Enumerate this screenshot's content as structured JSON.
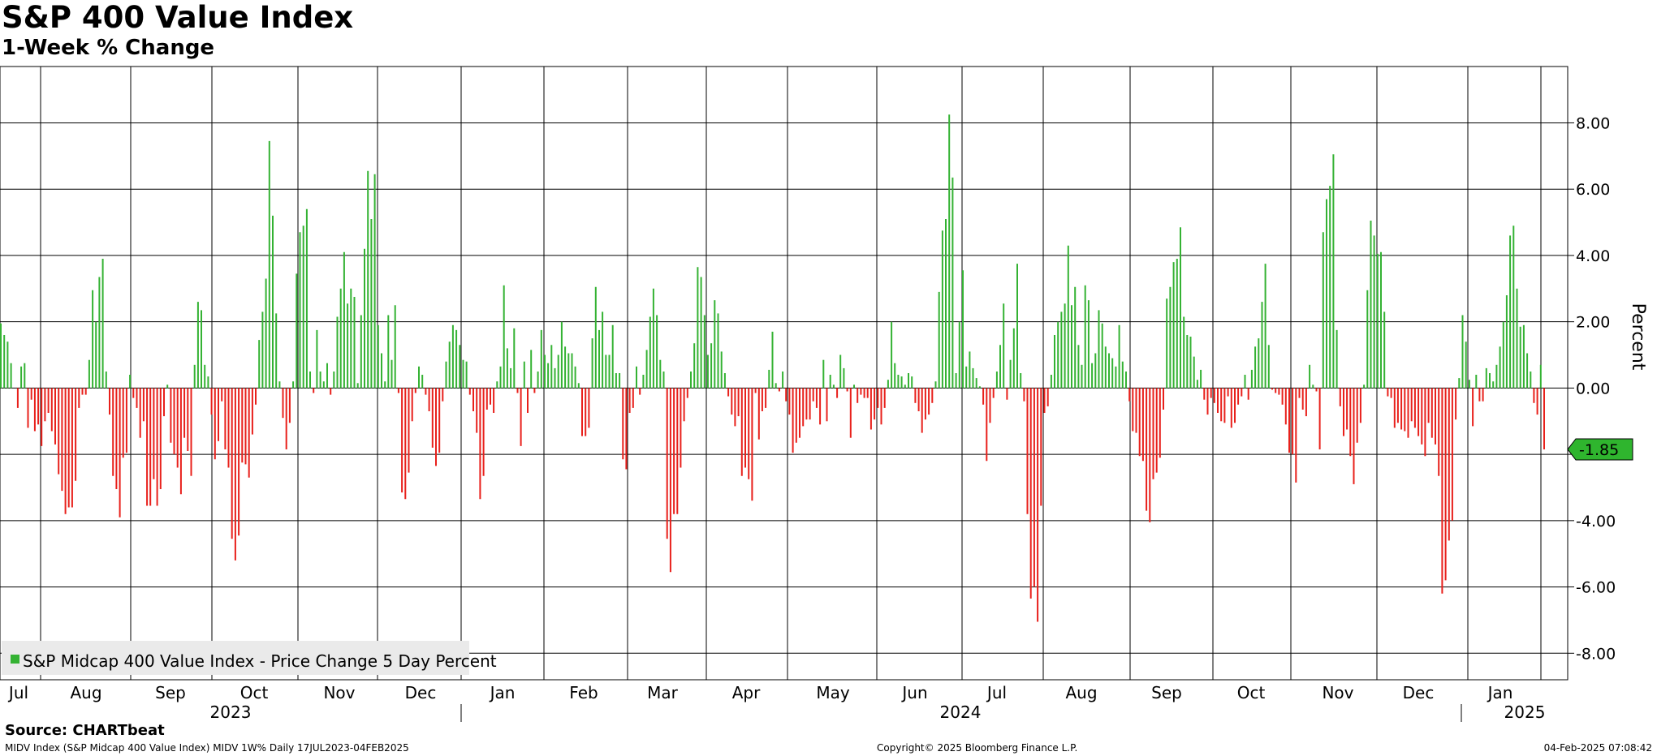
{
  "header": {
    "title": "S&P 400 Value Index",
    "subtitle": "1-Week % Change"
  },
  "footer": {
    "source": "Source: CHARTbeat",
    "left": "MIDV Index (S&P Midcap 400 Value Index) MIDV 1W%  Daily 17JUL2023-04FEB2025",
    "middle": "Copyright© 2025 Bloomberg Finance L.P.",
    "right": "04-Feb-2025 07:08:42"
  },
  "colors": {
    "positive": "#34b233",
    "negative": "#e8201b",
    "last_value_bg": "#2fb52e"
  },
  "chart_data": {
    "type": "bar",
    "ylabel": "Percent",
    "ylim": [
      -8.8,
      9.7
    ],
    "y_ticks": [
      8,
      6,
      4,
      2,
      0,
      -2,
      -4,
      -6,
      -8
    ],
    "y_tick_labels": [
      "8.00",
      "6.00",
      "4.00",
      "2.00",
      "0.00",
      "",
      "-4.00",
      "-6.00",
      "-8.00"
    ],
    "last_value_label": "-1.85",
    "last_value": -1.85,
    "legend": {
      "label": "S&P Midcap 400 Value Index - Price Change 5 Day Percent",
      "position": "bottom-left"
    },
    "months": [
      "Jul",
      "Aug",
      "Sep",
      "Oct",
      "Nov",
      "Dec",
      "Jan",
      "Feb",
      "Mar",
      "Apr",
      "May",
      "Jun",
      "Jul",
      "Aug",
      "Sep",
      "Oct",
      "Nov",
      "Dec",
      "Jan"
    ],
    "years": [
      "2023",
      "2024",
      "2025"
    ],
    "grid": true,
    "values": [
      1.95,
      1.6,
      1.4,
      0.75,
      0,
      -0.6,
      0.65,
      0.75,
      -1.2,
      -0.35,
      -1.3,
      -1.1,
      -1.75,
      -1.0,
      -0.75,
      -1.3,
      -1.7,
      -2.6,
      -3.1,
      -3.8,
      -3.6,
      -3.6,
      -2.8,
      -0.6,
      -0.2,
      -0.2,
      0.85,
      2.95,
      2.0,
      3.35,
      3.9,
      0.5,
      -0.8,
      -2.65,
      -3.05,
      -3.9,
      -2.1,
      -1.95,
      0.4,
      -0.3,
      -0.6,
      -1.5,
      -1.0,
      -3.55,
      -3.55,
      -2.75,
      -3.55,
      -3.05,
      -0.85,
      0.1,
      -1.65,
      -2.0,
      -2.4,
      -3.2,
      -1.5,
      -1.9,
      -2.65,
      0.7,
      2.6,
      2.35,
      0.7,
      0.35,
      -0.8,
      -2.15,
      -1.6,
      -0.4,
      -1.85,
      -2.4,
      -4.55,
      -5.2,
      -4.45,
      -2.25,
      -2.3,
      -2.7,
      -1.4,
      -0.5,
      1.45,
      2.3,
      3.3,
      7.45,
      5.2,
      2.25,
      0.2,
      -0.9,
      -1.85,
      -1.05,
      0.2,
      3.45,
      4.7,
      4.9,
      5.4,
      0.5,
      -0.15,
      1.75,
      0.5,
      0.2,
      0.75,
      -0.2,
      0.5,
      2.15,
      3.0,
      4.1,
      2.55,
      3.0,
      2.75,
      0.15,
      2.2,
      4.2,
      6.55,
      5.1,
      6.45,
      1.9,
      1.05,
      0.2,
      2.2,
      0.85,
      2.5
    ],
    "values_2": [
      -0.15,
      -3.15,
      -3.35,
      -2.55,
      -1.0,
      -0.15,
      0.65,
      0.4,
      -0.2,
      -0.7,
      -1.8,
      -2.35,
      -1.95,
      -0.4,
      0.8,
      1.4,
      1.9,
      1.75,
      1.3,
      0.85,
      0.8,
      -0.2,
      -0.7,
      -1.35,
      -3.35,
      -2.65,
      -0.65,
      -0.5,
      -0.75,
      0.2,
      0.65,
      3.1,
      1.2,
      0.6,
      1.8,
      -0.15,
      -1.75,
      0.8,
      -0.75,
      1.15,
      -0.15,
      0.5,
      1.75,
      1.0,
      0.75,
      1.3,
      0.6,
      1.0,
      2.0,
      1.25,
      1.05,
      1.05,
      0.65,
      0.15,
      -1.45,
      -1.45,
      -1.2,
      1.5,
      3.05,
      1.75,
      2.3,
      1.0,
      1.0,
      1.9,
      0.45,
      0.45,
      -2.15,
      -2.45,
      -0.75,
      -0.6,
      0.65,
      -0.2,
      0.4,
      1.15,
      2.15,
      3.0,
      2.2,
      0.85,
      0.5,
      -4.55,
      -5.55,
      -3.8,
      -3.8,
      -2.4,
      -1.0,
      -0.3,
      0.5,
      1.35,
      3.65,
      3.35,
      2.2,
      1.0,
      1.35,
      2.65,
      2.25,
      1.1,
      0.45,
      -0.25,
      -0.8,
      -1.15,
      -0.85,
      -2.65,
      -2.4,
      -2.75,
      -3.4,
      -0.15,
      -1.55,
      -0.7,
      -0.6,
      0.55,
      1.7,
      0.15,
      -0.1,
      0.5,
      -0.4,
      -0.8,
      -1.95
    ],
    "values_3": [
      -1.65,
      -1.5,
      -1.15,
      -0.95,
      -0.95,
      -0.4,
      -0.6,
      -1.1,
      0.85,
      -1.0,
      0.4,
      0.1,
      -0.3,
      1.0,
      0.6,
      -0.1,
      -1.5,
      0.1,
      -0.45,
      -0.2,
      -0.3,
      -0.3,
      -1.25,
      -0.95,
      -0.6,
      -1.1,
      -0.6,
      0.25,
      2.0,
      0.75,
      0.4,
      0.35,
      0.1,
      0.45,
      0.35,
      -0.45,
      -0.7,
      -1.35,
      -0.95,
      -0.8,
      -0.45,
      0.2,
      2.9,
      4.75,
      5.1,
      8.25,
      6.35,
      0.45,
      2.0,
      3.55,
      0.65,
      1.1,
      0.6,
      0.3,
      0.05,
      -0.5,
      -2.2,
      -1.05,
      -0.3,
      0.5,
      1.3,
      2.55,
      -0.35,
      0.85,
      1.8,
      3.75,
      0.45,
      -0.4,
      -3.8,
      -6.35,
      -6.0,
      -7.05,
      -3.55,
      -0.75,
      -0.55,
      0.4,
      1.6,
      2.0,
      2.3,
      2.55,
      4.3,
      2.5,
      3.05,
      1.3,
      0.7,
      3.1,
      2.65,
      0.75,
      1.05,
      2.35,
      1.95,
      1.25,
      1.05,
      0.9,
      0.65,
      1.9,
      0.8,
      0.5
    ],
    "values_4": [
      -0.4,
      -1.3,
      -1.35,
      -2.05,
      -2.2,
      -3.7,
      -4.05,
      -2.75,
      -2.55,
      -2.1,
      -0.65,
      2.7,
      3.05,
      3.8,
      3.9,
      4.85,
      2.15,
      1.6,
      1.55,
      0.95,
      0.25,
      0.55,
      -0.35,
      -0.8,
      -0.3,
      -0.45,
      -0.75,
      -1.0,
      -1.05,
      -0.25,
      -1.2,
      -1.05,
      -0.5,
      -0.25,
      0.4,
      -0.35,
      0.55,
      1.25,
      1.5,
      2.6,
      3.75,
      1.3,
      -0.05,
      -0.15,
      -0.2,
      -0.5,
      -1.1,
      -1.95,
      -2.0,
      -2.85,
      -0.3,
      -0.65,
      -0.85,
      0.7,
      0.1,
      -0.1,
      -1.85,
      4.7,
      5.7,
      6.1,
      7.05,
      1.75,
      -0.55,
      -1.45,
      -1.25,
      -2.05,
      -2.9,
      -1.65,
      -1.05,
      0.1,
      2.95,
      5.05,
      4.6,
      4.05,
      4.1,
      2.3,
      -0.25,
      -0.3,
      -1.2,
      -1.05,
      -1.25,
      -1.3,
      -1.5,
      -1.0,
      -1.2,
      -1.45,
      -1.7,
      -2.05,
      -1.05,
      -1.5,
      -1.7,
      -2.65,
      -6.2,
      -5.8,
      -4.6,
      -4.0,
      -0.95,
      0.3,
      2.2,
      1.4,
      0.25,
      -1.15,
      0.4,
      -0.4,
      -0.4,
      0.6,
      0.45,
      0.2,
      0.7,
      1.25,
      2.0,
      2.8,
      4.6,
      4.9,
      3.0,
      1.85,
      1.9,
      1.05,
      0.5,
      -0.45,
      -0.8,
      0.7,
      -1.85
    ]
  }
}
